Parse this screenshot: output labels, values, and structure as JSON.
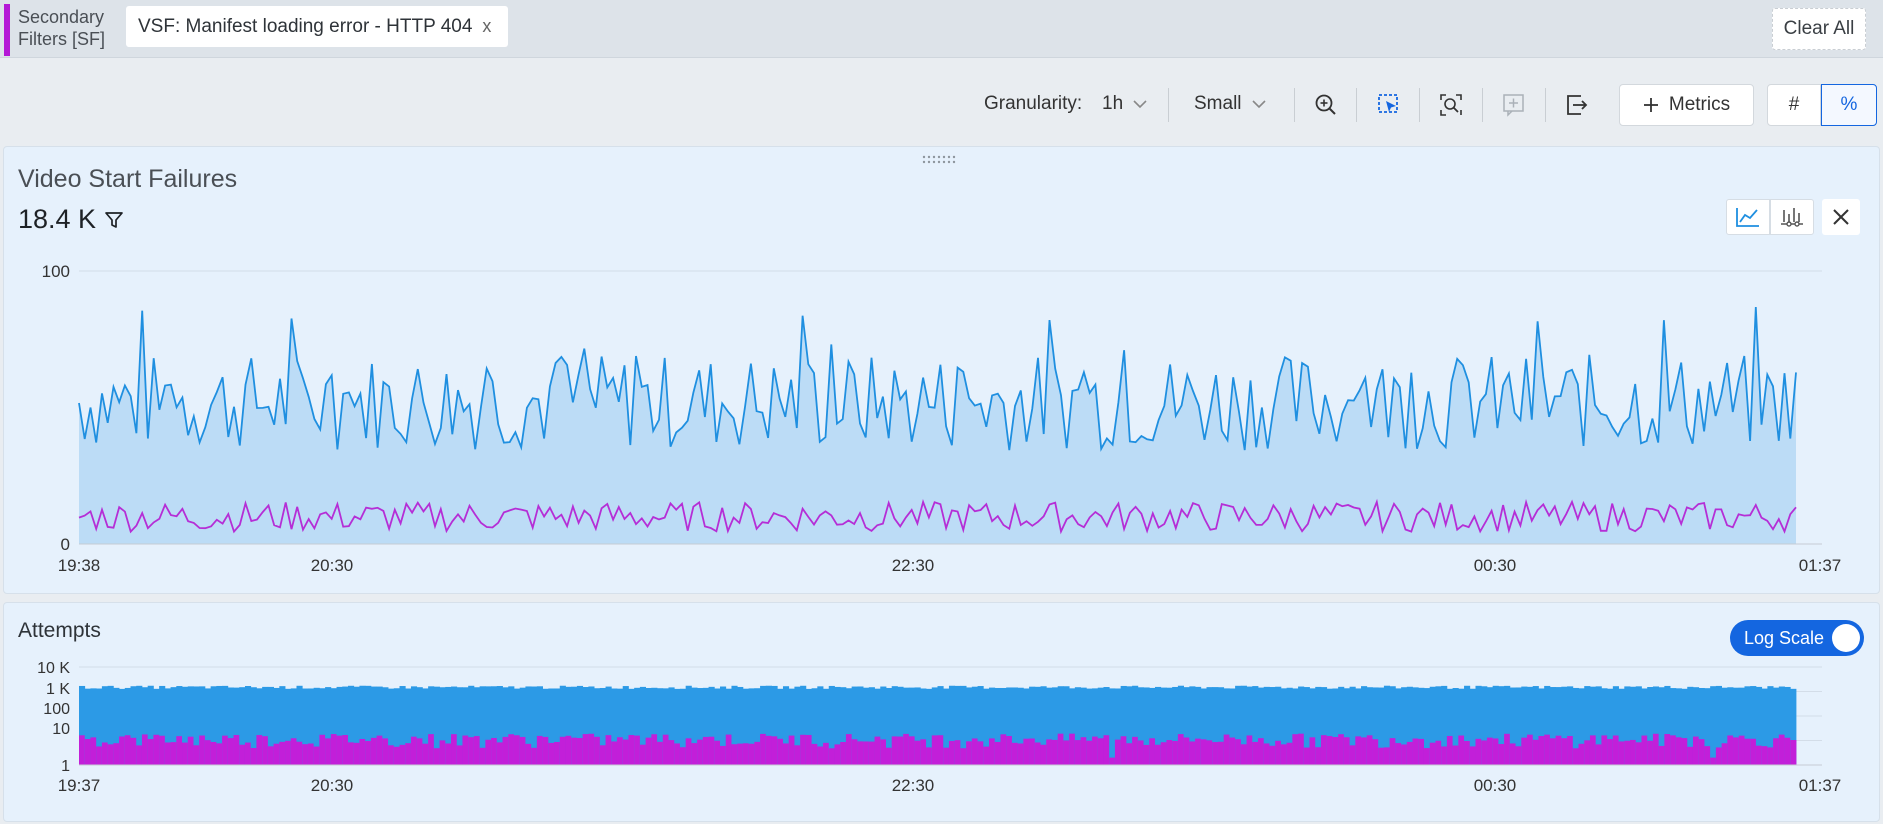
{
  "filter_bar": {
    "label": "Secondary Filters [SF]",
    "chip": "VSF: Manifest loading error - HTTP 404",
    "chip_close": "x",
    "clear_all": "Clear All"
  },
  "toolbar": {
    "granularity_label": "Granularity:",
    "granularity_value": "1h",
    "size_value": "Small",
    "metrics_button": "Metrics",
    "count_toggle": "#",
    "percent_toggle": "%",
    "active_toggle": "%"
  },
  "panel1": {
    "title": "Video Start Failures",
    "value": "18.4 K",
    "chart_data": {
      "type": "area",
      "yticks": [
        "100",
        "0"
      ],
      "ylim": [
        0,
        100
      ],
      "xticks": [
        "19:38",
        "20:30",
        "22:30",
        "00:30",
        "01:37"
      ],
      "series": [
        {
          "color": "#1f8fe0",
          "fill": "#bcdcf6",
          "samples": 300,
          "mean": 52,
          "range": [
            30,
            94
          ]
        },
        {
          "color": "#b52ed6",
          "fill": "none",
          "samples": 300,
          "mean": 10,
          "range": [
            1,
            21
          ]
        }
      ]
    }
  },
  "panel2": {
    "title": "Attempts",
    "log_scale_label": "Log Scale",
    "log_scale_on": true,
    "chart_data": {
      "type": "bar",
      "scale": "log",
      "yticks": [
        "10 K",
        "1 K",
        "100",
        "10",
        "1"
      ],
      "ylim": [
        1,
        10000
      ],
      "xticks": [
        "19:37",
        "20:30",
        "22:30",
        "00:30",
        "01:37"
      ],
      "series": [
        {
          "color": "#2c9ae6",
          "bars": 300,
          "typical_value": 1500
        },
        {
          "color": "#c21fd9",
          "bars": 300,
          "typical_value": 12
        }
      ]
    }
  },
  "colors": {
    "accent": "#b419d6",
    "primary": "#1466e0",
    "series_blue": "#1f8fe0",
    "series_purple": "#b52ed6"
  }
}
